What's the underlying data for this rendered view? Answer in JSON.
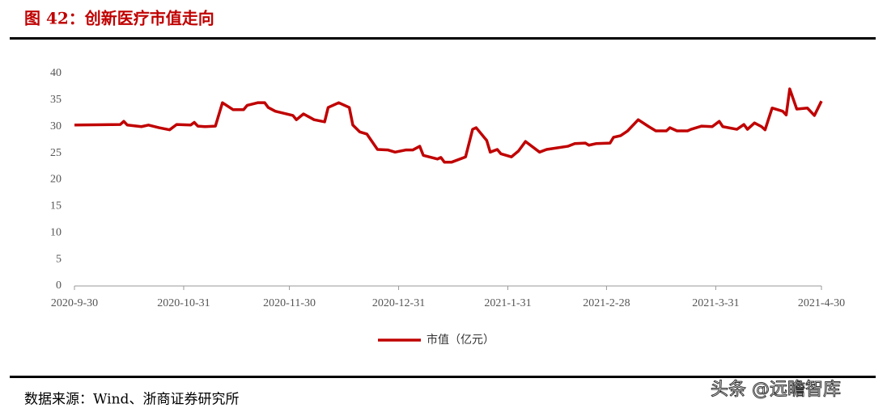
{
  "chart_data": {
    "type": "line",
    "title": "图 42：创新医疗市值走向",
    "source": "数据来源：Wind、浙商证券研究所",
    "watermark": "头条 @远瞻智库",
    "x": [
      "2020-09-30",
      "2020-10-13",
      "2020-10-14",
      "2020-10-15",
      "2020-10-19",
      "2020-10-21",
      "2020-10-24",
      "2020-10-27",
      "2020-10-29",
      "2020-11-02",
      "2020-11-03",
      "2020-11-04",
      "2020-11-06",
      "2020-11-09",
      "2020-11-11",
      "2020-11-14",
      "2020-11-17",
      "2020-11-18",
      "2020-11-21",
      "2020-11-23",
      "2020-11-24",
      "2020-11-26",
      "2020-12-01",
      "2020-12-02",
      "2020-12-04",
      "2020-12-07",
      "2020-12-10",
      "2020-12-11",
      "2020-12-14",
      "2020-12-17",
      "2020-12-18",
      "2020-12-20",
      "2020-12-22",
      "2020-12-25",
      "2020-12-28",
      "2020-12-30",
      "2021-01-02",
      "2021-01-04",
      "2021-01-06",
      "2021-01-07",
      "2021-01-11",
      "2021-01-12",
      "2021-01-13",
      "2021-01-15",
      "2021-01-19",
      "2021-01-21",
      "2021-01-22",
      "2021-01-25",
      "2021-01-26",
      "2021-01-28",
      "2021-01-29",
      "2021-02-01",
      "2021-02-03",
      "2021-02-05",
      "2021-02-09",
      "2021-02-11",
      "2021-02-17",
      "2021-02-19",
      "2021-02-22",
      "2021-02-23",
      "2021-02-25",
      "2021-03-01",
      "2021-03-02",
      "2021-03-04",
      "2021-03-06",
      "2021-03-09",
      "2021-03-12",
      "2021-03-14",
      "2021-03-17",
      "2021-03-18",
      "2021-03-20",
      "2021-03-23",
      "2021-03-24",
      "2021-03-27",
      "2021-03-30",
      "2021-04-01",
      "2021-04-02",
      "2021-04-06",
      "2021-04-08",
      "2021-04-09",
      "2021-04-11",
      "2021-04-13",
      "2021-04-14",
      "2021-04-16",
      "2021-04-19",
      "2021-04-20",
      "2021-04-21",
      "2021-04-23",
      "2021-04-26",
      "2021-04-28",
      "2021-04-30"
    ],
    "series": [
      {
        "name": "市值（亿元）",
        "color": "#c00000",
        "values": [
          30.3,
          30.4,
          31,
          30.3,
          30,
          30.3,
          29.8,
          29.4,
          30.4,
          30.3,
          30.8,
          30.1,
          30,
          30.1,
          34.5,
          33.2,
          33.2,
          34,
          34.5,
          34.5,
          33.6,
          32.9,
          32.1,
          31.3,
          32.4,
          31.3,
          30.9,
          33.6,
          34.5,
          33.6,
          30.3,
          29,
          28.6,
          25.7,
          25.6,
          25.2,
          25.6,
          25.6,
          26.3,
          24.6,
          23.9,
          24.2,
          23.3,
          23.3,
          24.3,
          29.5,
          29.8,
          27.4,
          25.2,
          25.7,
          24.9,
          24.3,
          25.4,
          27.2,
          25.2,
          25.7,
          26.3,
          26.8,
          26.9,
          26.5,
          26.8,
          26.9,
          28,
          28.3,
          29.2,
          31.3,
          30,
          29.2,
          29.2,
          29.8,
          29.2,
          29.2,
          29.5,
          30.1,
          30,
          31,
          30,
          29.5,
          30.4,
          29.5,
          30.7,
          30,
          29.4,
          33.5,
          32.9,
          32.2,
          37.1,
          33.3,
          33.5,
          32.1,
          34.8
        ]
      }
    ],
    "xlim": [
      "2020-09-30",
      "2021-04-30"
    ],
    "xticks": [
      {
        "value": "2020-09-30",
        "label": "2020-9-30"
      },
      {
        "value": "2020-10-31",
        "label": "2020-10-31"
      },
      {
        "value": "2020-11-30",
        "label": "2020-11-30"
      },
      {
        "value": "2020-12-31",
        "label": "2020-12-31"
      },
      {
        "value": "2021-01-31",
        "label": "2021-1-31"
      },
      {
        "value": "2021-02-28",
        "label": "2021-2-28"
      },
      {
        "value": "2021-03-31",
        "label": "2021-3-31"
      },
      {
        "value": "2021-04-30",
        "label": "2021-4-30"
      }
    ],
    "ylim": [
      0,
      40
    ],
    "yticks": [
      0,
      5,
      10,
      15,
      20,
      25,
      30,
      35,
      40
    ],
    "grid": false
  }
}
